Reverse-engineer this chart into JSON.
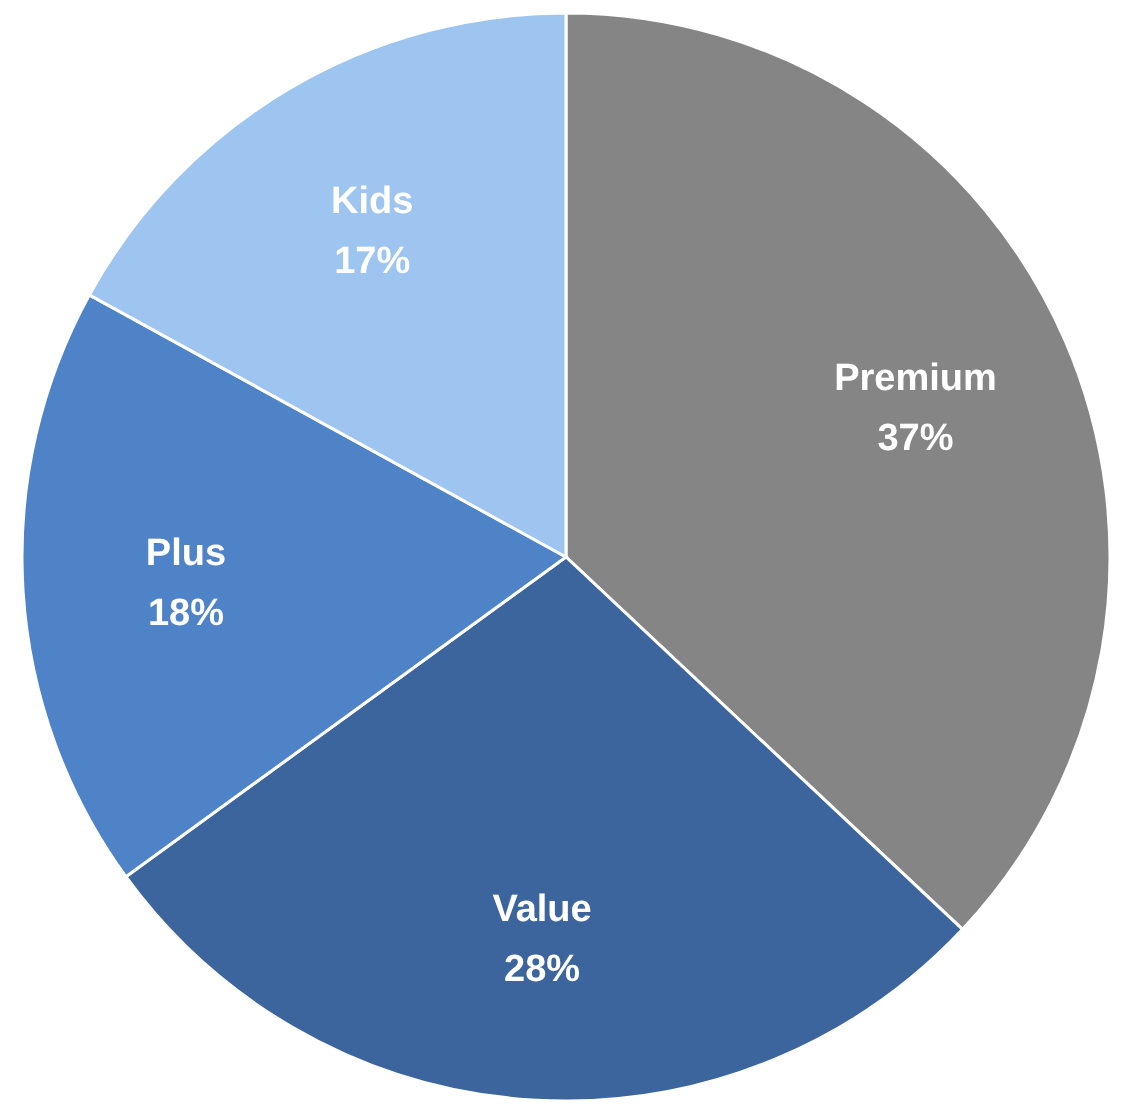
{
  "chart_data": {
    "type": "pie",
    "categories": [
      "Premium",
      "Value",
      "Plus",
      "Kids"
    ],
    "values": [
      37,
      28,
      18,
      17
    ],
    "value_labels": [
      "37%",
      "28%",
      "18%",
      "17%"
    ],
    "colors": [
      "#858585",
      "#3b659c",
      "#4f83c8",
      "#9ec4f0"
    ]
  }
}
